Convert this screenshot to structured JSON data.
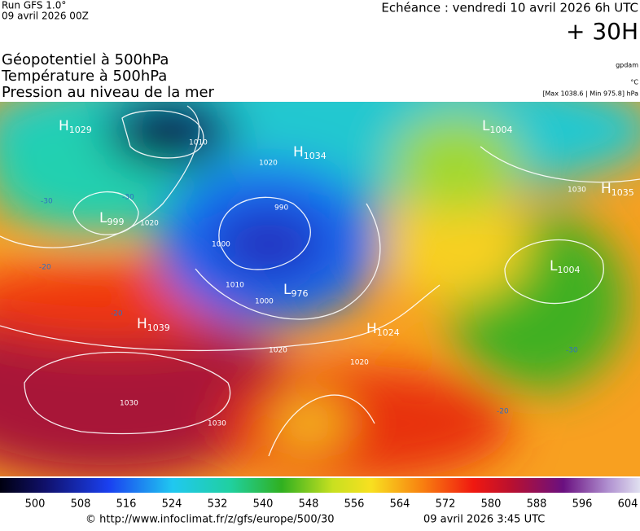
{
  "header": {
    "run": "Run GFS 1.0°",
    "run_date": "09 avril 2026 00Z",
    "echeance": "Echéance : vendredi 10 avril 2026 6h UTC",
    "offset": "+ 30H"
  },
  "titles": [
    "Géopotentiel à 500hPa",
    "Température à 500hPa",
    "Pression au niveau de la mer"
  ],
  "units": {
    "geopotential": "gpdam",
    "temperature": "°C",
    "pressure": "[Max 1038.6 | Min 975.8] hPa"
  },
  "pressure_centers": [
    {
      "letter": "H",
      "value": 1029
    },
    {
      "letter": "L",
      "value": 999
    },
    {
      "letter": "H",
      "value": 1039
    },
    {
      "letter": "L",
      "value": 976
    },
    {
      "letter": "H",
      "value": 1034
    },
    {
      "letter": "L",
      "value": 1004
    },
    {
      "letter": "H",
      "value": 1035
    },
    {
      "letter": "L",
      "value": 1004
    },
    {
      "letter": "H",
      "value": 1024
    }
  ],
  "isobar_labels": [
    "1010",
    "1020",
    "990",
    "1000",
    "1010",
    "1000",
    "1020",
    "1030",
    "1030",
    "1020",
    "1030",
    "1020"
  ],
  "temperature_labels": [
    "-30",
    "-20",
    "-30",
    "-20",
    "-20",
    "-30"
  ],
  "colorbar_labels": [
    "500",
    "508",
    "516",
    "524",
    "532",
    "540",
    "548",
    "556",
    "564",
    "572",
    "580",
    "588",
    "596",
    "604"
  ],
  "footer": {
    "url": "© http://www.infoclimat.fr/z/gfs/europe/500/30",
    "date": "09 avril 2026  3:45 UTC"
  }
}
